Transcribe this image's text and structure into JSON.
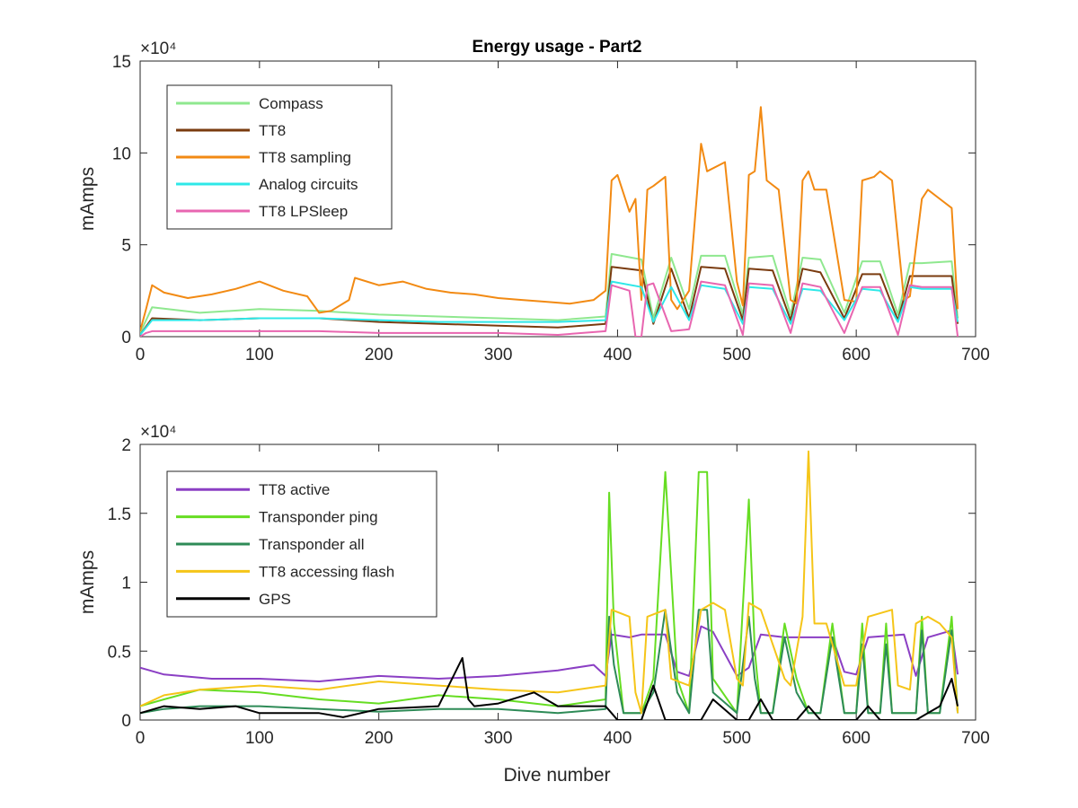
{
  "figure": {
    "title": "Energy usage - Part2",
    "xlabel": "Dive number"
  },
  "chart_data": [
    {
      "type": "line",
      "title": "Energy usage - Part2",
      "xlabel": "",
      "ylabel": "mAmps",
      "y_multiplier_label": "×10⁴",
      "xlim": [
        0,
        700
      ],
      "ylim": [
        0,
        15
      ],
      "xticks": [
        "0",
        "100",
        "200",
        "300",
        "400",
        "500",
        "600",
        "700"
      ],
      "yticks": [
        "0",
        "5",
        "10",
        "15"
      ],
      "grid": false,
      "legend": "top-left",
      "series": [
        {
          "name": "Compass",
          "color": "#8fe88f",
          "x": [
            0,
            10,
            50,
            100,
            150,
            200,
            250,
            300,
            350,
            390,
            395,
            420,
            430,
            445,
            460,
            470,
            490,
            505,
            510,
            530,
            545,
            555,
            570,
            590,
            605,
            620,
            635,
            645,
            655,
            680,
            685
          ],
          "values": [
            0.2,
            1.6,
            1.3,
            1.5,
            1.4,
            1.2,
            1.1,
            1.0,
            0.9,
            1.1,
            4.5,
            4.2,
            1.0,
            4.3,
            1.5,
            4.4,
            4.4,
            1.2,
            4.3,
            4.4,
            1.2,
            4.3,
            4.2,
            1.3,
            4.1,
            4.1,
            1.2,
            4.0,
            4.0,
            4.1,
            1.0
          ]
        },
        {
          "name": "TT8",
          "color": "#7a3b0f",
          "x": [
            0,
            10,
            50,
            100,
            150,
            200,
            250,
            300,
            350,
            390,
            395,
            420,
            430,
            445,
            460,
            470,
            490,
            505,
            510,
            530,
            545,
            555,
            570,
            590,
            605,
            620,
            635,
            645,
            655,
            680,
            685
          ],
          "values": [
            0.1,
            1.0,
            0.9,
            1.0,
            1.0,
            0.8,
            0.7,
            0.6,
            0.5,
            0.7,
            3.8,
            3.6,
            0.7,
            3.7,
            1.0,
            3.8,
            3.7,
            0.9,
            3.7,
            3.6,
            0.9,
            3.7,
            3.5,
            1.0,
            3.4,
            3.4,
            0.9,
            3.3,
            3.3,
            3.3,
            0.7
          ]
        },
        {
          "name": "TT8 sampling",
          "color": "#f28a13",
          "x": [
            0,
            5,
            10,
            20,
            40,
            60,
            80,
            100,
            120,
            140,
            150,
            160,
            175,
            180,
            200,
            220,
            240,
            260,
            280,
            300,
            320,
            340,
            360,
            380,
            390,
            395,
            400,
            410,
            415,
            420,
            425,
            430,
            440,
            445,
            450,
            460,
            470,
            475,
            490,
            500,
            505,
            510,
            515,
            520,
            525,
            535,
            545,
            550,
            555,
            560,
            565,
            575,
            590,
            600,
            605,
            615,
            620,
            630,
            640,
            645,
            655,
            660,
            670,
            680,
            685
          ],
          "values": [
            0.3,
            1.5,
            2.8,
            2.4,
            2.1,
            2.3,
            2.6,
            3.0,
            2.5,
            2.2,
            1.3,
            1.4,
            2.0,
            3.2,
            2.8,
            3.0,
            2.6,
            2.4,
            2.3,
            2.1,
            2.0,
            1.9,
            1.8,
            2.0,
            2.5,
            8.5,
            8.8,
            6.8,
            7.5,
            2.0,
            8.0,
            8.2,
            8.7,
            2.0,
            1.5,
            2.5,
            10.5,
            9.0,
            9.5,
            3.0,
            1.7,
            8.8,
            9.0,
            12.5,
            8.5,
            8.0,
            2.0,
            1.8,
            8.5,
            9.0,
            8.0,
            8.0,
            2.0,
            1.9,
            8.5,
            8.7,
            9.0,
            8.5,
            2.0,
            2.2,
            7.5,
            8.0,
            7.5,
            7.0,
            1.5
          ]
        },
        {
          "name": "Analog circuits",
          "color": "#2ee8e8",
          "x": [
            0,
            10,
            50,
            100,
            150,
            200,
            250,
            300,
            350,
            390,
            395,
            420,
            430,
            445,
            460,
            470,
            490,
            505,
            510,
            530,
            545,
            555,
            570,
            590,
            605,
            620,
            635,
            645,
            655,
            680,
            685
          ],
          "values": [
            0.1,
            0.9,
            0.9,
            1.0,
            1.0,
            0.9,
            0.8,
            0.8,
            0.8,
            0.9,
            3.0,
            2.7,
            0.8,
            2.7,
            0.9,
            2.8,
            2.6,
            0.7,
            2.7,
            2.6,
            0.7,
            2.6,
            2.5,
            0.9,
            2.6,
            2.5,
            0.8,
            2.7,
            2.6,
            2.6,
            0.8
          ]
        },
        {
          "name": "TT8 LPSleep",
          "color": "#e866b0",
          "x": [
            0,
            5,
            10,
            50,
            100,
            150,
            200,
            250,
            300,
            350,
            390,
            395,
            410,
            415,
            420,
            425,
            430,
            445,
            460,
            470,
            490,
            505,
            510,
            530,
            545,
            555,
            570,
            590,
            605,
            620,
            635,
            645,
            655,
            680,
            685
          ],
          "values": [
            0.0,
            0.2,
            0.3,
            0.3,
            0.3,
            0.3,
            0.2,
            0.2,
            0.2,
            0.1,
            0.3,
            2.8,
            2.5,
            0.0,
            0.0,
            2.8,
            2.9,
            0.3,
            0.4,
            3.0,
            2.8,
            0.1,
            2.9,
            2.8,
            0.2,
            2.9,
            2.7,
            0.2,
            2.7,
            2.7,
            0.1,
            2.8,
            2.7,
            2.7,
            0.0
          ]
        }
      ]
    },
    {
      "type": "line",
      "title": "",
      "xlabel": "Dive number",
      "ylabel": "mAmps",
      "y_multiplier_label": "×10⁴",
      "xlim": [
        0,
        700
      ],
      "ylim": [
        0,
        2
      ],
      "xticks": [
        "0",
        "100",
        "200",
        "300",
        "400",
        "500",
        "600",
        "700"
      ],
      "yticks": [
        "0",
        "0.5",
        "1",
        "1.5",
        "2"
      ],
      "grid": false,
      "legend": "top-left",
      "series": [
        {
          "name": "TT8 active",
          "color": "#8b3fc4",
          "x": [
            0,
            20,
            60,
            100,
            150,
            200,
            250,
            300,
            350,
            380,
            390,
            395,
            410,
            420,
            440,
            450,
            460,
            470,
            480,
            500,
            510,
            520,
            540,
            560,
            580,
            590,
            600,
            610,
            640,
            650,
            660,
            680,
            685
          ],
          "values": [
            0.38,
            0.33,
            0.3,
            0.3,
            0.28,
            0.32,
            0.3,
            0.32,
            0.36,
            0.4,
            0.32,
            0.62,
            0.6,
            0.62,
            0.62,
            0.35,
            0.32,
            0.68,
            0.64,
            0.32,
            0.38,
            0.62,
            0.6,
            0.6,
            0.6,
            0.35,
            0.33,
            0.6,
            0.62,
            0.32,
            0.6,
            0.65,
            0.33
          ]
        },
        {
          "name": "Transponder ping",
          "color": "#66dd22",
          "x": [
            0,
            20,
            50,
            100,
            150,
            200,
            250,
            300,
            350,
            390,
            393,
            397,
            405,
            420,
            430,
            440,
            450,
            460,
            468,
            475,
            480,
            500,
            510,
            515,
            520,
            530,
            540,
            550,
            560,
            570,
            580,
            590,
            600,
            605,
            610,
            620,
            625,
            630,
            640,
            650,
            655,
            660,
            670,
            680,
            685
          ],
          "values": [
            0.1,
            0.15,
            0.22,
            0.2,
            0.15,
            0.12,
            0.18,
            0.15,
            0.1,
            0.15,
            1.65,
            0.7,
            0.05,
            0.05,
            0.3,
            1.8,
            0.3,
            0.05,
            1.8,
            1.8,
            0.3,
            0.05,
            1.6,
            0.5,
            0.05,
            0.05,
            0.7,
            0.3,
            0.05,
            0.05,
            0.7,
            0.05,
            0.05,
            0.7,
            0.05,
            0.05,
            0.7,
            0.05,
            0.05,
            0.05,
            0.75,
            0.05,
            0.05,
            0.75,
            0.05
          ]
        },
        {
          "name": "Transponder all",
          "color": "#2e8b57",
          "x": [
            0,
            20,
            50,
            100,
            150,
            200,
            250,
            300,
            350,
            390,
            393,
            397,
            405,
            420,
            430,
            440,
            450,
            460,
            468,
            475,
            480,
            500,
            510,
            515,
            520,
            530,
            540,
            550,
            560,
            570,
            580,
            590,
            600,
            605,
            610,
            620,
            625,
            630,
            640,
            650,
            655,
            660,
            670,
            680,
            685
          ],
          "values": [
            0.05,
            0.08,
            0.1,
            0.1,
            0.08,
            0.06,
            0.08,
            0.08,
            0.05,
            0.08,
            0.75,
            0.4,
            0.05,
            0.05,
            0.2,
            0.8,
            0.2,
            0.05,
            0.8,
            0.8,
            0.2,
            0.05,
            0.75,
            0.3,
            0.05,
            0.05,
            0.6,
            0.2,
            0.05,
            0.05,
            0.6,
            0.05,
            0.05,
            0.55,
            0.05,
            0.05,
            0.55,
            0.05,
            0.05,
            0.05,
            0.65,
            0.05,
            0.05,
            0.65,
            0.05
          ]
        },
        {
          "name": "TT8 accessing flash",
          "color": "#f5c518",
          "x": [
            0,
            20,
            50,
            100,
            150,
            200,
            250,
            300,
            350,
            390,
            395,
            410,
            415,
            420,
            425,
            440,
            445,
            460,
            470,
            480,
            490,
            500,
            505,
            510,
            520,
            540,
            545,
            555,
            560,
            565,
            575,
            590,
            600,
            610,
            630,
            635,
            645,
            650,
            660,
            670,
            680,
            685
          ],
          "values": [
            0.1,
            0.18,
            0.22,
            0.25,
            0.22,
            0.28,
            0.25,
            0.22,
            0.2,
            0.25,
            0.8,
            0.75,
            0.2,
            0.05,
            0.75,
            0.8,
            0.3,
            0.25,
            0.8,
            0.85,
            0.8,
            0.3,
            0.25,
            0.85,
            0.8,
            0.3,
            0.25,
            0.75,
            1.95,
            0.7,
            0.7,
            0.25,
            0.25,
            0.75,
            0.8,
            0.25,
            0.22,
            0.7,
            0.75,
            0.7,
            0.6,
            0.05
          ]
        },
        {
          "name": "GPS",
          "color": "#000000",
          "x": [
            0,
            20,
            50,
            80,
            100,
            150,
            170,
            200,
            250,
            270,
            275,
            280,
            300,
            330,
            350,
            390,
            395,
            400,
            420,
            430,
            440,
            450,
            470,
            480,
            500,
            510,
            520,
            530,
            540,
            550,
            560,
            570,
            580,
            590,
            600,
            610,
            620,
            625,
            630,
            640,
            650,
            660,
            670,
            680,
            685
          ],
          "values": [
            0.05,
            0.1,
            0.08,
            0.1,
            0.05,
            0.05,
            0.02,
            0.08,
            0.1,
            0.45,
            0.15,
            0.1,
            0.12,
            0.2,
            0.1,
            0.1,
            0.05,
            0.0,
            0.0,
            0.25,
            0.0,
            0.0,
            0.0,
            0.15,
            0.0,
            0.0,
            0.15,
            0.0,
            0.0,
            0.0,
            0.1,
            0.0,
            0.0,
            0.0,
            0.0,
            0.1,
            0.0,
            0.0,
            0.0,
            0.0,
            0.0,
            0.05,
            0.1,
            0.3,
            0.1
          ]
        }
      ]
    }
  ]
}
